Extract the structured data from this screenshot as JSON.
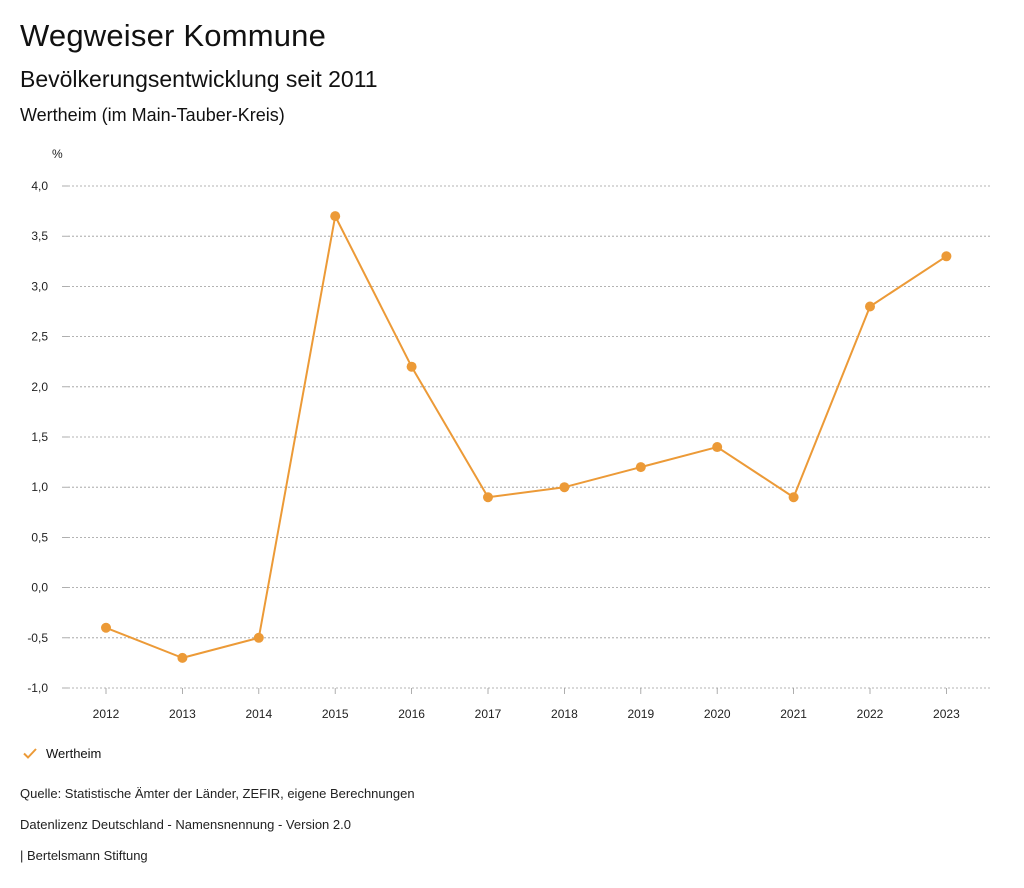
{
  "header": {
    "title": "Wegweiser Kommune",
    "subtitle": "Bevölkerungsentwicklung seit 2011",
    "region": "Wertheim (im Main-Tauber-Kreis)"
  },
  "chart_data": {
    "type": "line",
    "title": "Bevölkerungsentwicklung seit 2011",
    "subtitle": "Wertheim (im Main-Tauber-Kreis)",
    "ylabel": "%",
    "xlabel": "",
    "ylim": [
      -1.0,
      4.0
    ],
    "yticks": [
      -1.0,
      -0.5,
      0.0,
      0.5,
      1.0,
      1.5,
      2.0,
      2.5,
      3.0,
      3.5,
      4.0
    ],
    "ytick_labels": [
      "-1,0",
      "-0,5",
      "0,0",
      "0,5",
      "1,0",
      "1,5",
      "2,0",
      "2,5",
      "3,0",
      "3,5",
      "4,0"
    ],
    "categories": [
      "2012",
      "2013",
      "2014",
      "2015",
      "2016",
      "2017",
      "2018",
      "2019",
      "2020",
      "2021",
      "2022",
      "2023"
    ],
    "series": [
      {
        "name": "Wertheim",
        "color": "#ec9a37",
        "values": [
          -0.4,
          -0.7,
          -0.5,
          3.7,
          2.2,
          0.9,
          1.0,
          1.2,
          1.4,
          0.9,
          2.8,
          3.3
        ]
      }
    ],
    "grid": true,
    "legend_position": "bottom-left"
  },
  "legend": {
    "label": "Wertheim",
    "icon": "check-icon"
  },
  "footer": {
    "source": "Quelle: Statistische Ämter der Länder, ZEFIR, eigene Berechnungen",
    "license": "Datenlizenz Deutschland - Namensnennung - Version 2.0",
    "publisher": "| Bertelsmann Stiftung"
  }
}
